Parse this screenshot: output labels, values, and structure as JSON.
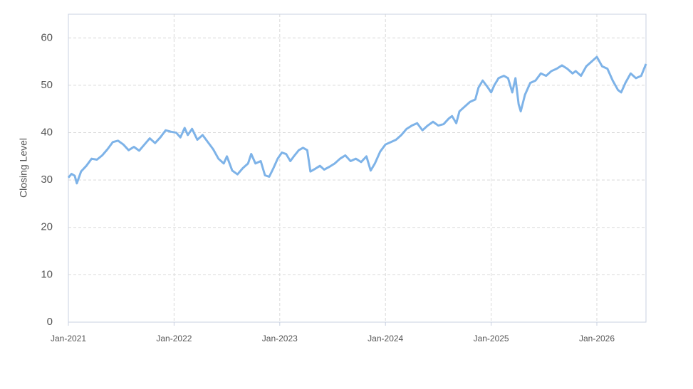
{
  "chart_data": {
    "type": "line",
    "y_label": "Closing Level",
    "x": [
      2021.0,
      2021.03,
      2021.06,
      2021.08,
      2021.12,
      2021.17,
      2021.22,
      2021.27,
      2021.32,
      2021.37,
      2021.42,
      2021.47,
      2021.52,
      2021.57,
      2021.62,
      2021.67,
      2021.72,
      2021.77,
      2021.82,
      2021.87,
      2021.92,
      2021.97,
      2022.02,
      2022.06,
      2022.1,
      2022.13,
      2022.17,
      2022.22,
      2022.27,
      2022.32,
      2022.37,
      2022.42,
      2022.47,
      2022.5,
      2022.55,
      2022.6,
      2022.65,
      2022.7,
      2022.73,
      2022.77,
      2022.82,
      2022.86,
      2022.9,
      2022.94,
      2022.98,
      2023.02,
      2023.06,
      2023.1,
      2023.14,
      2023.18,
      2023.22,
      2023.26,
      2023.29,
      2023.33,
      2023.38,
      2023.42,
      2023.47,
      2023.52,
      2023.57,
      2023.62,
      2023.67,
      2023.72,
      2023.77,
      2023.82,
      2023.86,
      2023.9,
      2023.95,
      2024.0,
      2024.05,
      2024.1,
      2024.15,
      2024.2,
      2024.25,
      2024.3,
      2024.35,
      2024.4,
      2024.45,
      2024.5,
      2024.55,
      2024.6,
      2024.63,
      2024.67,
      2024.7,
      2024.75,
      2024.8,
      2024.85,
      2024.88,
      2024.92,
      2024.97,
      2025.0,
      2025.03,
      2025.07,
      2025.12,
      2025.16,
      2025.2,
      2025.23,
      2025.26,
      2025.28,
      2025.32,
      2025.37,
      2025.42,
      2025.47,
      2025.52,
      2025.57,
      2025.62,
      2025.67,
      2025.72,
      2025.77,
      2025.8,
      2025.85,
      2025.9,
      2025.95,
      2026.0,
      2026.05,
      2026.1,
      2026.15,
      2026.2,
      2026.23,
      2026.27,
      2026.32,
      2026.37,
      2026.42,
      2026.465
    ],
    "series": [
      {
        "name": "Closing Level",
        "color": "#7eb3e8",
        "values": [
          30.5,
          31.3,
          30.9,
          29.3,
          31.8,
          33,
          34.5,
          34.3,
          35.2,
          36.5,
          38,
          38.3,
          37.5,
          36.3,
          37,
          36.2,
          37.5,
          38.8,
          37.8,
          39,
          40.5,
          40.2,
          40,
          39,
          41,
          39.5,
          40.8,
          38.5,
          39.5,
          38,
          36.5,
          34.5,
          33.5,
          35,
          32,
          31.2,
          32.5,
          33.5,
          35.5,
          33.5,
          34,
          31,
          30.7,
          32.5,
          34.5,
          35.8,
          35.5,
          34,
          35.2,
          36.3,
          36.8,
          36.3,
          31.8,
          32.3,
          33,
          32.2,
          32.8,
          33.5,
          34.5,
          35.2,
          34,
          34.5,
          33.8,
          35,
          32,
          33.5,
          36,
          37.5,
          38,
          38.5,
          39.5,
          40.8,
          41.5,
          42,
          40.5,
          41.5,
          42.3,
          41.5,
          41.8,
          43,
          43.5,
          42,
          44.5,
          45.5,
          46.5,
          47,
          49.5,
          51,
          49.5,
          48.5,
          50,
          51.5,
          52,
          51.5,
          48.5,
          51.5,
          46,
          44.5,
          48,
          50.5,
          51,
          52.5,
          52,
          53,
          53.5,
          54.2,
          53.5,
          52.5,
          53,
          52,
          54,
          55,
          56,
          54,
          53.5,
          51,
          49,
          48.5,
          50.5,
          52.5,
          51.5,
          52,
          54.5
        ]
      }
    ],
    "xlim": [
      2021.0,
      2026.465
    ],
    "xticks": [
      {
        "value": 2021,
        "label": "Jan-2021"
      },
      {
        "value": 2022,
        "label": "Jan-2022"
      },
      {
        "value": 2023,
        "label": "Jan-2023"
      },
      {
        "value": 2024,
        "label": "Jan-2024"
      },
      {
        "value": 2025,
        "label": "Jan-2025"
      },
      {
        "value": 2026,
        "label": "Jan-2026"
      }
    ],
    "ylim": [
      0,
      65
    ],
    "yticks": [
      0,
      10,
      20,
      30,
      40,
      50,
      60
    ],
    "grid": true
  }
}
